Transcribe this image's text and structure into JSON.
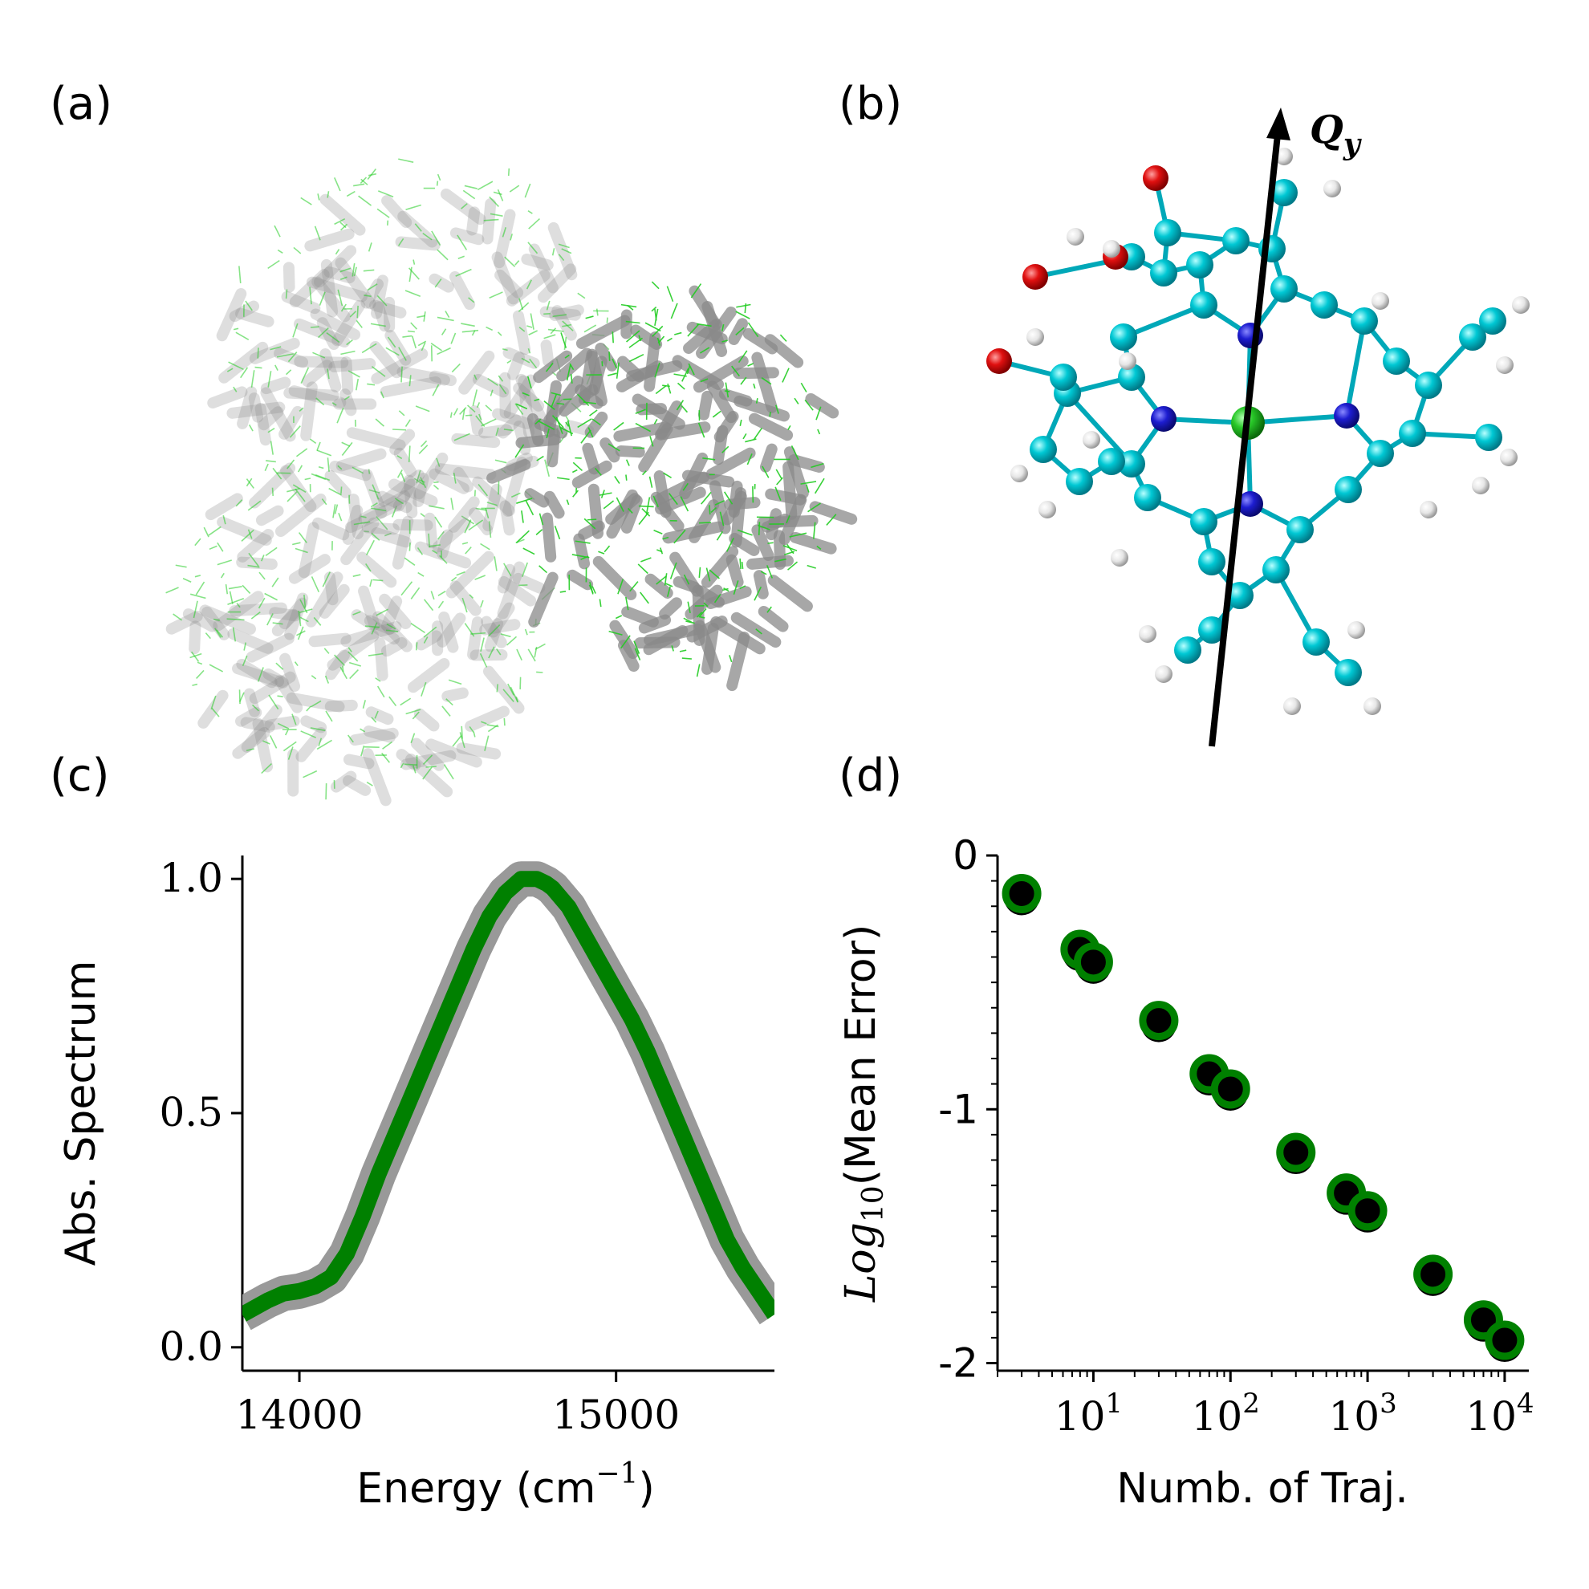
{
  "panels": {
    "a": {
      "label": "(a)"
    },
    "b": {
      "label": "(b)",
      "arrow_label": "Q",
      "arrow_sub": "y"
    },
    "c": {
      "label": "(c)"
    },
    "d": {
      "label": "(d)"
    }
  },
  "colors": {
    "green_line": "#008000",
    "gray_band": "#999999",
    "carbon": "#00bcc8",
    "nitrogen": "#1d1dc8",
    "oxygen": "#e01010",
    "magnesium": "#28c828",
    "hydrogen": "#e8e8e8"
  },
  "chart_data": [
    {
      "type": "line",
      "panel": "c",
      "title": "",
      "xlabel": "Energy (cm",
      "xlabel_unit_power": "−1",
      "xlabel_close": ")",
      "ylabel": "Abs. Spectrum",
      "xlim": [
        13820,
        15500
      ],
      "ylim": [
        -0.05,
        1.05
      ],
      "x_ticks": [
        14000,
        15000
      ],
      "x_tick_labels": [
        "14000",
        "15000"
      ],
      "y_ticks": [
        0.0,
        0.5,
        1.0
      ],
      "y_tick_labels": [
        "0.0",
        "0.5",
        "1.0"
      ],
      "series": [
        {
          "style": "gray_band",
          "x": [
            13820,
            13900,
            13950,
            14000,
            14050,
            14100,
            14150,
            14200,
            14250,
            14300,
            14350,
            14400,
            14450,
            14500,
            14550,
            14600,
            14650,
            14700,
            14750,
            14780,
            14800,
            14850,
            14900,
            14950,
            15000,
            15050,
            15100,
            15150,
            15200,
            15250,
            15300,
            15350,
            15400,
            15450,
            15500
          ],
          "y": [
            0.07,
            0.1,
            0.115,
            0.12,
            0.13,
            0.15,
            0.2,
            0.28,
            0.37,
            0.45,
            0.53,
            0.61,
            0.69,
            0.77,
            0.85,
            0.92,
            0.97,
            1.0,
            1.0,
            0.99,
            0.98,
            0.94,
            0.88,
            0.82,
            0.76,
            0.7,
            0.63,
            0.55,
            0.47,
            0.39,
            0.31,
            0.23,
            0.17,
            0.12,
            0.07
          ]
        },
        {
          "style": "green_line",
          "x": [
            13820,
            13900,
            13950,
            14000,
            14050,
            14100,
            14150,
            14200,
            14250,
            14300,
            14350,
            14400,
            14450,
            14500,
            14550,
            14600,
            14650,
            14700,
            14750,
            14780,
            14800,
            14850,
            14900,
            14950,
            15000,
            15050,
            15100,
            15150,
            15200,
            15250,
            15300,
            15350,
            15400,
            15450,
            15500
          ],
          "y": [
            0.07,
            0.1,
            0.115,
            0.12,
            0.13,
            0.15,
            0.2,
            0.28,
            0.37,
            0.45,
            0.53,
            0.61,
            0.69,
            0.77,
            0.85,
            0.92,
            0.97,
            1.0,
            1.0,
            0.99,
            0.98,
            0.94,
            0.88,
            0.82,
            0.76,
            0.7,
            0.63,
            0.55,
            0.47,
            0.39,
            0.31,
            0.23,
            0.17,
            0.12,
            0.07
          ]
        }
      ]
    },
    {
      "type": "scatter",
      "panel": "d",
      "title": "",
      "xlabel": "Numb. of Traj.",
      "ylabel": "Log",
      "ylabel_sub": "10",
      "ylabel_rest": "(Mean Error)",
      "x_scale": "log",
      "xlim": [
        2,
        15000
      ],
      "ylim": [
        -2.03,
        0.0
      ],
      "x_ticks": [
        10,
        100,
        1000,
        10000
      ],
      "x_tick_bases": [
        "10",
        "10",
        "10",
        "10"
      ],
      "x_tick_exponents": [
        "1",
        "2",
        "3",
        "4"
      ],
      "y_ticks": [
        0,
        -1,
        -2
      ],
      "y_tick_labels": [
        "0",
        "-1",
        "-2"
      ],
      "x": [
        3,
        8,
        10,
        30,
        70,
        100,
        300,
        700,
        1000,
        3000,
        7000,
        10000
      ],
      "y": [
        -0.15,
        -0.37,
        -0.42,
        -0.65,
        -0.86,
        -0.92,
        -1.17,
        -1.33,
        -1.4,
        -1.65,
        -1.83,
        -1.91
      ]
    }
  ]
}
